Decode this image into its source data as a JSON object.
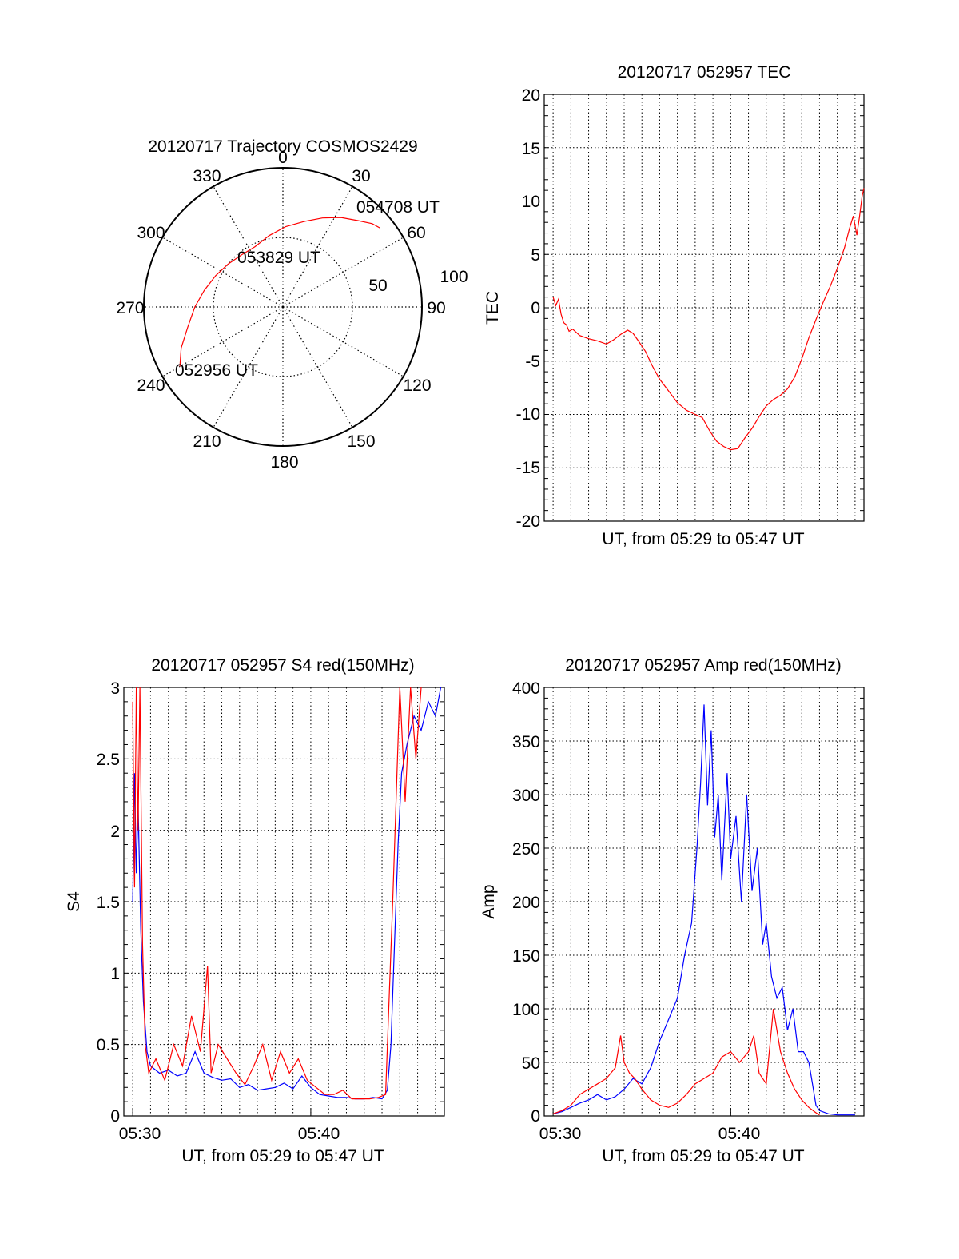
{
  "colors": {
    "red": "#ff0000",
    "blue": "#0000ff",
    "axis": "#000000",
    "grid": "#000000"
  },
  "chart_data": [
    {
      "type": "polar",
      "title": "20120717 Trajectory COSMOS2429",
      "angle_labels": [
        "0",
        "30",
        "60",
        "90",
        "120",
        "150",
        "180",
        "210",
        "240",
        "270",
        "300",
        "330"
      ],
      "radial_labels": [
        "50",
        "100"
      ],
      "grid": true,
      "series": [
        {
          "color": "red",
          "points": [
            {
              "az": 240,
              "el": 13
            },
            {
              "az": 248,
              "el": 19
            },
            {
              "az": 258,
              "el": 27
            },
            {
              "az": 270,
              "el": 33
            },
            {
              "az": 282,
              "el": 38
            },
            {
              "az": 295,
              "el": 42
            },
            {
              "az": 308,
              "el": 45
            },
            {
              "az": 322,
              "el": 47
            },
            {
              "az": 335,
              "el": 47
            },
            {
              "az": 349,
              "el": 43
            },
            {
              "az": 2,
              "el": 38
            },
            {
              "az": 14,
              "el": 33
            },
            {
              "az": 24,
              "el": 27
            },
            {
              "az": 33,
              "el": 21
            },
            {
              "az": 41,
              "el": 16
            },
            {
              "az": 47,
              "el": 11
            },
            {
              "az": 51,
              "el": 9
            }
          ]
        }
      ],
      "annotations": [
        "054708 UT",
        "053829 UT",
        "052956 UT"
      ]
    },
    {
      "type": "line",
      "title": "20120717 052957 TEC",
      "xlabel": "UT, from 05:29 to 05:47 UT",
      "ylabel": "TEC",
      "xlim": [
        5.5,
        23.5
      ],
      "ylim": [
        -20,
        20
      ],
      "yticks": [
        "20",
        "15",
        "10",
        "5",
        "0",
        "-5",
        "-10",
        "-15",
        "-20"
      ],
      "grid": true,
      "series": [
        {
          "color": "red",
          "points": [
            [
              6.0,
              1.0
            ],
            [
              6.15,
              0.2
            ],
            [
              6.3,
              0.8
            ],
            [
              6.45,
              -0.6
            ],
            [
              6.6,
              -1.4
            ],
            [
              6.75,
              -1.6
            ],
            [
              6.9,
              -2.2
            ],
            [
              7.1,
              -2.0
            ],
            [
              7.5,
              -2.6
            ],
            [
              8.0,
              -2.9
            ],
            [
              8.5,
              -3.1
            ],
            [
              9.0,
              -3.4
            ],
            [
              9.4,
              -3.0
            ],
            [
              9.8,
              -2.5
            ],
            [
              10.2,
              -2.1
            ],
            [
              10.5,
              -2.4
            ],
            [
              10.8,
              -3.1
            ],
            [
              11.2,
              -4.1
            ],
            [
              11.6,
              -5.5
            ],
            [
              12.0,
              -6.7
            ],
            [
              12.5,
              -7.8
            ],
            [
              13.0,
              -8.9
            ],
            [
              13.5,
              -9.6
            ],
            [
              14.0,
              -10.0
            ],
            [
              14.4,
              -10.3
            ],
            [
              14.8,
              -11.5
            ],
            [
              15.2,
              -12.5
            ],
            [
              15.6,
              -13.0
            ],
            [
              16.0,
              -13.3
            ],
            [
              16.4,
              -13.2
            ],
            [
              16.8,
              -12.2
            ],
            [
              17.2,
              -11.3
            ],
            [
              17.6,
              -10.2
            ],
            [
              18.0,
              -9.2
            ],
            [
              18.4,
              -8.6
            ],
            [
              18.8,
              -8.2
            ],
            [
              19.2,
              -7.6
            ],
            [
              19.6,
              -6.5
            ],
            [
              20.0,
              -4.8
            ],
            [
              20.4,
              -2.8
            ],
            [
              20.8,
              -1.1
            ],
            [
              21.2,
              0.5
            ],
            [
              21.6,
              2.0
            ],
            [
              22.0,
              3.7
            ],
            [
              22.4,
              5.6
            ],
            [
              22.7,
              7.5
            ],
            [
              22.9,
              8.6
            ],
            [
              23.1,
              6.8
            ],
            [
              23.25,
              8.5
            ],
            [
              23.4,
              10.5
            ],
            [
              23.5,
              11.2
            ]
          ]
        }
      ]
    },
    {
      "type": "line",
      "title": "20120717 052957 S4 red(150MHz)",
      "xlabel": "UT, from 05:29 to 05:47 UT",
      "ylabel": "S4",
      "xlim": [
        5.5,
        23.5
      ],
      "ylim": [
        0,
        3
      ],
      "xticks": [
        "05:30",
        "05:40"
      ],
      "yticks": [
        "3",
        "2.5",
        "2",
        "1.5",
        "1",
        "0.5",
        "0"
      ],
      "grid": true,
      "series": [
        {
          "color": "blue",
          "points": [
            [
              6.0,
              1.5
            ],
            [
              6.1,
              2.4
            ],
            [
              6.2,
              1.7
            ],
            [
              6.3,
              2.2
            ],
            [
              6.45,
              1.3
            ],
            [
              6.6,
              0.8
            ],
            [
              6.8,
              0.45
            ],
            [
              7.0,
              0.35
            ],
            [
              7.5,
              0.3
            ],
            [
              8.0,
              0.32
            ],
            [
              8.5,
              0.28
            ],
            [
              9.0,
              0.3
            ],
            [
              9.5,
              0.45
            ],
            [
              10.0,
              0.3
            ],
            [
              10.5,
              0.27
            ],
            [
              11.0,
              0.25
            ],
            [
              11.5,
              0.26
            ],
            [
              12.0,
              0.2
            ],
            [
              12.5,
              0.22
            ],
            [
              13.0,
              0.18
            ],
            [
              13.5,
              0.19
            ],
            [
              14.0,
              0.2
            ],
            [
              14.5,
              0.23
            ],
            [
              15.0,
              0.19
            ],
            [
              15.5,
              0.28
            ],
            [
              16.0,
              0.2
            ],
            [
              16.5,
              0.15
            ],
            [
              17.0,
              0.14
            ],
            [
              17.5,
              0.13
            ],
            [
              18.0,
              0.13
            ],
            [
              18.5,
              0.12
            ],
            [
              19.0,
              0.12
            ],
            [
              19.5,
              0.13
            ],
            [
              20.0,
              0.12
            ],
            [
              20.3,
              0.18
            ],
            [
              20.5,
              0.5
            ],
            [
              20.7,
              1.2
            ],
            [
              20.9,
              1.9
            ],
            [
              21.1,
              2.4
            ],
            [
              21.4,
              2.6
            ],
            [
              21.8,
              2.8
            ],
            [
              22.2,
              2.7
            ],
            [
              22.6,
              2.9
            ],
            [
              23.0,
              2.8
            ],
            [
              23.3,
              3.0
            ]
          ]
        },
        {
          "color": "red",
          "points": [
            [
              6.0,
              2.9
            ],
            [
              6.1,
              1.6
            ],
            [
              6.2,
              3.0
            ],
            [
              6.3,
              2.0
            ],
            [
              6.4,
              3.0
            ],
            [
              6.55,
              1.2
            ],
            [
              6.7,
              0.5
            ],
            [
              6.9,
              0.3
            ],
            [
              7.3,
              0.4
            ],
            [
              7.8,
              0.25
            ],
            [
              8.3,
              0.5
            ],
            [
              8.8,
              0.35
            ],
            [
              9.3,
              0.7
            ],
            [
              9.8,
              0.45
            ],
            [
              10.2,
              1.05
            ],
            [
              10.4,
              0.3
            ],
            [
              10.8,
              0.5
            ],
            [
              11.3,
              0.4
            ],
            [
              11.8,
              0.3
            ],
            [
              12.3,
              0.22
            ],
            [
              12.8,
              0.35
            ],
            [
              13.3,
              0.5
            ],
            [
              13.8,
              0.25
            ],
            [
              14.3,
              0.45
            ],
            [
              14.8,
              0.3
            ],
            [
              15.3,
              0.4
            ],
            [
              15.8,
              0.25
            ],
            [
              16.3,
              0.2
            ],
            [
              16.8,
              0.15
            ],
            [
              17.3,
              0.15
            ],
            [
              17.8,
              0.18
            ],
            [
              18.3,
              0.12
            ],
            [
              18.8,
              0.12
            ],
            [
              19.3,
              0.12
            ],
            [
              19.8,
              0.13
            ],
            [
              20.2,
              0.15
            ],
            [
              20.6,
              1.5
            ],
            [
              21.0,
              3.0
            ],
            [
              21.3,
              2.2
            ],
            [
              21.6,
              3.0
            ],
            [
              21.9,
              2.5
            ],
            [
              22.2,
              3.0
            ]
          ]
        }
      ]
    },
    {
      "type": "line",
      "title": "20120717 052957 Amp red(150MHz)",
      "xlabel": "UT, from 05:29 to 05:47 UT",
      "ylabel": "Amp",
      "xlim": [
        5.5,
        23.5
      ],
      "ylim": [
        0,
        400
      ],
      "xticks": [
        "05:30",
        "05:40"
      ],
      "yticks": [
        "400",
        "350",
        "300",
        "250",
        "200",
        "150",
        "100",
        "50",
        "0"
      ],
      "grid": true,
      "series": [
        {
          "color": "blue",
          "points": [
            [
              6.0,
              2
            ],
            [
              6.5,
              4
            ],
            [
              7.0,
              8
            ],
            [
              7.5,
              12
            ],
            [
              8.0,
              15
            ],
            [
              8.5,
              20
            ],
            [
              9.0,
              15
            ],
            [
              9.5,
              18
            ],
            [
              10.0,
              25
            ],
            [
              10.5,
              35
            ],
            [
              11.0,
              30
            ],
            [
              11.5,
              45
            ],
            [
              12.0,
              70
            ],
            [
              12.5,
              90
            ],
            [
              13.0,
              110
            ],
            [
              13.4,
              150
            ],
            [
              13.8,
              180
            ],
            [
              14.1,
              250
            ],
            [
              14.3,
              310
            ],
            [
              14.5,
              384
            ],
            [
              14.7,
              290
            ],
            [
              14.9,
              360
            ],
            [
              15.1,
              260
            ],
            [
              15.3,
              300
            ],
            [
              15.5,
              220
            ],
            [
              15.8,
              320
            ],
            [
              16.0,
              240
            ],
            [
              16.3,
              280
            ],
            [
              16.6,
              200
            ],
            [
              16.9,
              300
            ],
            [
              17.2,
              210
            ],
            [
              17.5,
              250
            ],
            [
              17.8,
              160
            ],
            [
              18.0,
              180
            ],
            [
              18.3,
              130
            ],
            [
              18.6,
              110
            ],
            [
              18.9,
              120
            ],
            [
              19.2,
              80
            ],
            [
              19.5,
              100
            ],
            [
              19.8,
              60
            ],
            [
              20.1,
              60
            ],
            [
              20.4,
              50
            ],
            [
              20.6,
              30
            ],
            [
              20.8,
              10
            ],
            [
              21.0,
              5
            ],
            [
              21.5,
              2
            ],
            [
              22.0,
              1
            ],
            [
              23.0,
              1
            ]
          ]
        },
        {
          "color": "red",
          "points": [
            [
              6.0,
              2
            ],
            [
              6.5,
              5
            ],
            [
              7.0,
              10
            ],
            [
              7.5,
              20
            ],
            [
              8.0,
              25
            ],
            [
              8.5,
              30
            ],
            [
              9.0,
              35
            ],
            [
              9.5,
              45
            ],
            [
              9.8,
              75
            ],
            [
              10.0,
              50
            ],
            [
              10.3,
              40
            ],
            [
              10.6,
              35
            ],
            [
              11.0,
              25
            ],
            [
              11.5,
              15
            ],
            [
              12.0,
              10
            ],
            [
              12.5,
              8
            ],
            [
              13.0,
              12
            ],
            [
              13.5,
              20
            ],
            [
              14.0,
              30
            ],
            [
              14.5,
              35
            ],
            [
              15.0,
              40
            ],
            [
              15.5,
              55
            ],
            [
              16.0,
              60
            ],
            [
              16.5,
              50
            ],
            [
              17.0,
              60
            ],
            [
              17.3,
              75
            ],
            [
              17.6,
              40
            ],
            [
              18.0,
              30
            ],
            [
              18.4,
              100
            ],
            [
              18.8,
              60
            ],
            [
              19.2,
              40
            ],
            [
              19.6,
              25
            ],
            [
              20.0,
              15
            ],
            [
              20.4,
              8
            ],
            [
              20.8,
              3
            ],
            [
              21.0,
              1
            ]
          ]
        }
      ]
    }
  ]
}
